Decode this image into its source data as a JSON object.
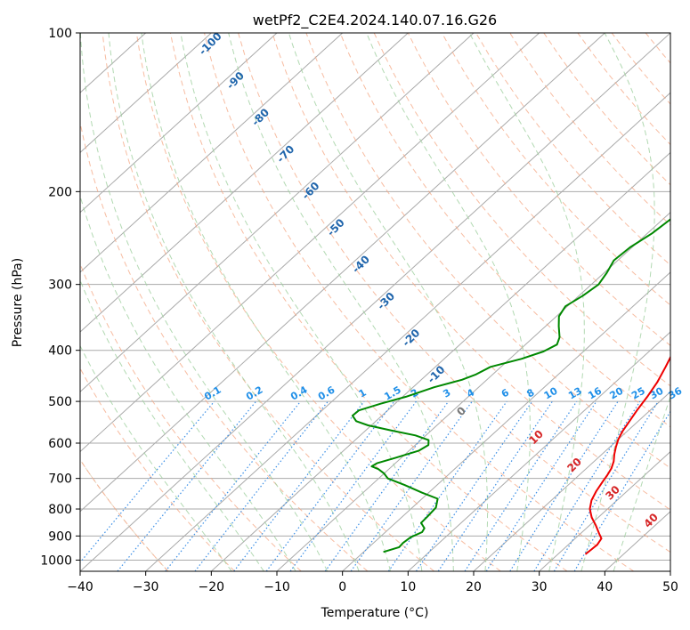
{
  "chart_data": {
    "type": "line",
    "title": "wetPf2_C2E4.2024.140.07.16.G26",
    "xlabel": "Temperature (°C)",
    "ylabel": "Pressure (hPa)",
    "xlim": [
      -40,
      50
    ],
    "ylim": [
      1050,
      100
    ],
    "y_scale": "log",
    "x_ticks": [
      -40,
      -30,
      -20,
      -10,
      0,
      10,
      20,
      30,
      40,
      50
    ],
    "x_tick_labels": [
      "−40",
      "−30",
      "−20",
      "−10",
      "0",
      "10",
      "20",
      "30",
      "40",
      "50"
    ],
    "y_ticks": [
      100,
      200,
      300,
      400,
      500,
      600,
      700,
      800,
      900,
      1000
    ],
    "y_tick_labels": [
      "100",
      "200",
      "300",
      "400",
      "500",
      "600",
      "700",
      "800",
      "900",
      "1000"
    ],
    "skew_factor": 1.0,
    "series": [
      {
        "name": "Temperature",
        "color": "#ee0000",
        "points": [
          [
            975,
            34.2
          ],
          [
            955,
            34.3
          ],
          [
            935,
            34.4
          ],
          [
            910,
            34.0
          ],
          [
            890,
            32.8
          ],
          [
            860,
            31.0
          ],
          [
            830,
            29.0
          ],
          [
            800,
            27.3
          ],
          [
            770,
            26.1
          ],
          [
            740,
            25.3
          ],
          [
            710,
            24.7
          ],
          [
            690,
            24.3
          ],
          [
            670,
            23.8
          ],
          [
            650,
            23.0
          ],
          [
            630,
            21.9
          ],
          [
            610,
            20.9
          ],
          [
            590,
            20.0
          ],
          [
            570,
            19.3
          ],
          [
            550,
            18.8
          ],
          [
            520,
            18.0
          ],
          [
            490,
            17.3
          ],
          [
            460,
            16.4
          ],
          [
            430,
            15.1
          ],
          [
            400,
            13.6
          ],
          [
            370,
            12.1
          ],
          [
            340,
            10.5
          ],
          [
            310,
            8.7
          ],
          [
            285,
            7.4
          ],
          [
            265,
            6.3
          ],
          [
            250,
            5.6
          ],
          [
            235,
            5.2
          ],
          [
            215,
            5.1
          ],
          [
            200,
            5.3
          ],
          [
            185,
            5.8
          ],
          [
            170,
            6.6
          ],
          [
            160,
            7.5
          ],
          [
            150,
            8.7
          ],
          [
            140,
            9.8
          ],
          [
            132,
            10.2
          ],
          [
            125,
            9.9
          ],
          [
            118,
            9.2
          ],
          [
            113,
            9.6
          ],
          [
            108,
            11.0
          ],
          [
            104,
            12.2
          ],
          [
            100,
            13.0
          ]
        ]
      },
      {
        "name": "Dewpoint",
        "color": "#008800",
        "points": [
          [
            965,
            3.0
          ],
          [
            945,
            4.6
          ],
          [
            928,
            4.5
          ],
          [
            905,
            4.7
          ],
          [
            885,
            5.6
          ],
          [
            870,
            5.3
          ],
          [
            850,
            3.9
          ],
          [
            825,
            3.8
          ],
          [
            795,
            3.6
          ],
          [
            765,
            2.4
          ],
          [
            745,
            -1.0
          ],
          [
            720,
            -5.0
          ],
          [
            700,
            -8.6
          ],
          [
            685,
            -10.0
          ],
          [
            672,
            -11.6
          ],
          [
            664,
            -13.1
          ],
          [
            655,
            -12.8
          ],
          [
            640,
            -10.9
          ],
          [
            620,
            -8.5
          ],
          [
            605,
            -8.0
          ],
          [
            592,
            -8.8
          ],
          [
            580,
            -11.6
          ],
          [
            568,
            -16.0
          ],
          [
            555,
            -20.5
          ],
          [
            545,
            -23.0
          ],
          [
            532,
            -24.5
          ],
          [
            520,
            -24.4
          ],
          [
            505,
            -22.2
          ],
          [
            490,
            -19.5
          ],
          [
            470,
            -16.8
          ],
          [
            455,
            -13.8
          ],
          [
            445,
            -12.6
          ],
          [
            430,
            -11.6
          ],
          [
            415,
            -8.2
          ],
          [
            402,
            -6.1
          ],
          [
            390,
            -5.2
          ],
          [
            378,
            -6.0
          ],
          [
            360,
            -8.0
          ],
          [
            345,
            -9.6
          ],
          [
            330,
            -10.3
          ],
          [
            315,
            -9.4
          ],
          [
            300,
            -8.9
          ],
          [
            285,
            -9.6
          ],
          [
            270,
            -10.6
          ],
          [
            255,
            -10.3
          ],
          [
            240,
            -9.3
          ],
          [
            225,
            -8.8
          ],
          [
            210,
            -8.3
          ],
          [
            198,
            -8.4
          ],
          [
            185,
            -8.3
          ],
          [
            172,
            -7.1
          ],
          [
            160,
            -5.8
          ],
          [
            150,
            -3.9
          ],
          [
            140,
            -1.4
          ],
          [
            132,
            -0.4
          ],
          [
            125,
            -0.2
          ],
          [
            120,
            -0.2
          ],
          [
            113,
            -0.5
          ],
          [
            108,
            -0.3
          ],
          [
            103,
            -0.3
          ],
          [
            100,
            0.0
          ]
        ]
      }
    ],
    "dry_adiabat_labels": [
      "-100",
      "-90",
      "-80",
      "-70",
      "-60",
      "-50",
      "-40",
      "-30",
      "-20",
      "-10",
      "0",
      "10",
      "20",
      "30",
      "40"
    ],
    "mixing_ratio_labels": [
      "0.1",
      "0.2",
      "0.4",
      "0.6",
      "1",
      "1.5",
      "2",
      "3",
      "4",
      "6",
      "8",
      "10",
      "13",
      "16",
      "20",
      "25",
      "30",
      "36"
    ],
    "line_colors": {
      "isotherm": "#aaaaaa",
      "dry_adiabat": "#f4a582",
      "moist_adiabat": "#9fd09f",
      "mixing_ratio": "#3a8ee6",
      "label_dry_cold": "#2166ac",
      "label_dry_warm": "#d62728",
      "label_mixing": "#1f8fe8",
      "label_zero": "#777777",
      "reference_curve": "#d6bf9e"
    }
  }
}
